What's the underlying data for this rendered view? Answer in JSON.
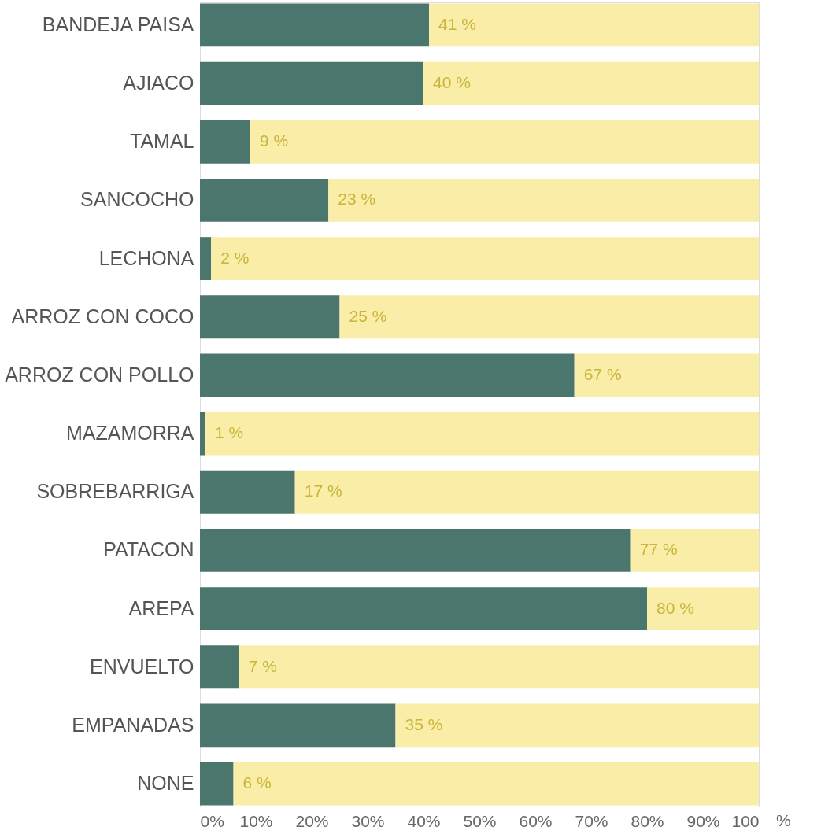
{
  "chart_data": {
    "type": "bar",
    "orientation": "horizontal",
    "stacked": true,
    "categories": [
      "BANDEJA PAISA",
      "AJIACO",
      "TAMAL",
      "SANCOCHO",
      "LECHONA",
      "ARROZ CON COCO",
      "ARROZ CON POLLO",
      "MAZAMORRA",
      "SOBREBARRIGA",
      "PATACON",
      "AREPA",
      "ENVUELTO",
      "EMPANADAS",
      "NONE"
    ],
    "series": [
      {
        "color": "#4a766e",
        "values": [
          41,
          40,
          9,
          23,
          2,
          25,
          67,
          1,
          17,
          77,
          80,
          7,
          35,
          6
        ],
        "value_labels": [
          "41 %",
          "40 %",
          "9  %",
          "23 %",
          "2  %",
          "25 %",
          "67 %",
          "1  %",
          "17 %",
          "77 %",
          "80 %",
          "7  %",
          "35 %",
          "6  %"
        ]
      },
      {
        "color": "#f9eda8",
        "values": [
          59,
          60,
          91,
          77,
          98,
          75,
          33,
          99,
          83,
          23,
          20,
          93,
          65,
          94
        ]
      }
    ],
    "xlim": [
      0,
      100
    ],
    "xticks": [
      {
        "value": 0,
        "label": "0%"
      },
      {
        "value": 10,
        "label": "10%"
      },
      {
        "value": 20,
        "label": "20%"
      },
      {
        "value": 30,
        "label": "30%"
      },
      {
        "value": 40,
        "label": "40%"
      },
      {
        "value": 50,
        "label": "50%"
      },
      {
        "value": 60,
        "label": "60%"
      },
      {
        "value": 70,
        "label": "70%"
      },
      {
        "value": 80,
        "label": "80%"
      },
      {
        "value": 90,
        "label": "90%"
      },
      100
    ],
    "annotations": [
      "%"
    ],
    "grid": false
  }
}
